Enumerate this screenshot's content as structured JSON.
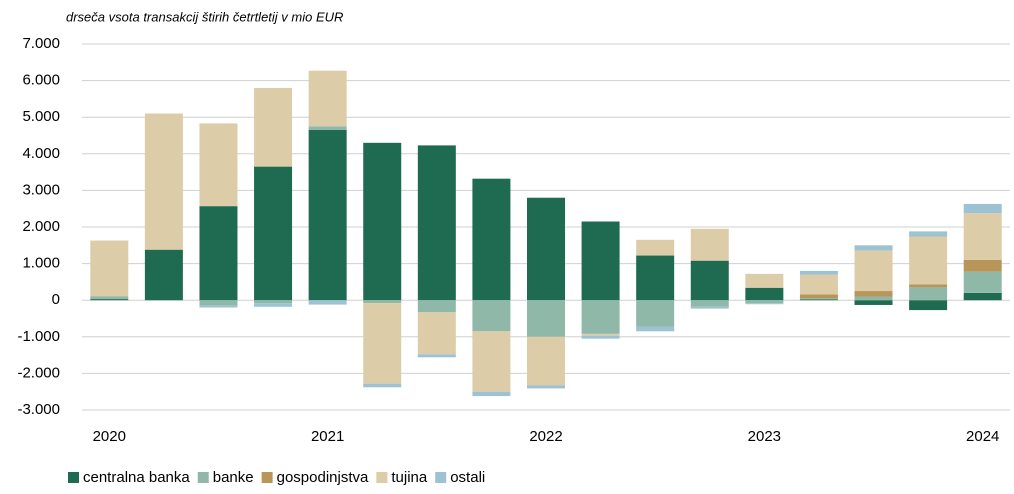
{
  "chart_data": {
    "type": "bar",
    "stacked": true,
    "subtitle": "drseča vsota transakcij štirih četrtletij v mio EUR",
    "categories": [
      "2020",
      null,
      null,
      null,
      "2021",
      null,
      null,
      null,
      "2022",
      null,
      null,
      null,
      "2023",
      null,
      null,
      null,
      "2024"
    ],
    "series": [
      {
        "name": "centralna banka",
        "color": "#1f6b52",
        "values": [
          30,
          1380,
          2570,
          3650,
          4650,
          4300,
          4230,
          3320,
          2800,
          2150,
          1220,
          1080,
          340,
          20,
          -130,
          -270,
          200
        ]
      },
      {
        "name": "banke",
        "color": "#8fb8a8",
        "values": [
          80,
          0,
          -150,
          -80,
          100,
          -80,
          -330,
          -850,
          -1000,
          -920,
          -720,
          -180,
          -80,
          30,
          100,
          350,
          580
        ]
      },
      {
        "name": "gospodinjstva",
        "color": "#b8965a",
        "values": [
          0,
          0,
          0,
          0,
          0,
          0,
          0,
          0,
          0,
          0,
          0,
          0,
          0,
          110,
          150,
          80,
          320
        ]
      },
      {
        "name": "tujina",
        "color": "#dccca8",
        "values": [
          1520,
          3720,
          2260,
          2150,
          1520,
          -2200,
          -1150,
          -1650,
          -1330,
          -50,
          430,
          870,
          380,
          540,
          1110,
          1310,
          1280
        ]
      },
      {
        "name": "ostali",
        "color": "#9cc2d4",
        "values": [
          0,
          0,
          -50,
          -100,
          -120,
          -100,
          -80,
          -120,
          -80,
          -80,
          -130,
          -50,
          -30,
          100,
          140,
          140,
          250
        ]
      }
    ],
    "ylim": [
      -3000,
      7000
    ],
    "yticks": [
      {
        "value": -3000,
        "label": "-3.000"
      },
      {
        "value": -2000,
        "label": "-2.000"
      },
      {
        "value": -1000,
        "label": "-1.000"
      },
      0,
      {
        "value": 1000,
        "label": "1.000"
      },
      {
        "value": 2000,
        "label": "2.000"
      },
      {
        "value": 3000,
        "label": "3.000"
      },
      {
        "value": 4000,
        "label": "4.000"
      },
      {
        "value": 5000,
        "label": "5.000"
      },
      {
        "value": 6000,
        "label": "6.000"
      },
      {
        "value": 7000,
        "label": "7.000"
      }
    ],
    "grid": true,
    "legend": "bottom"
  }
}
